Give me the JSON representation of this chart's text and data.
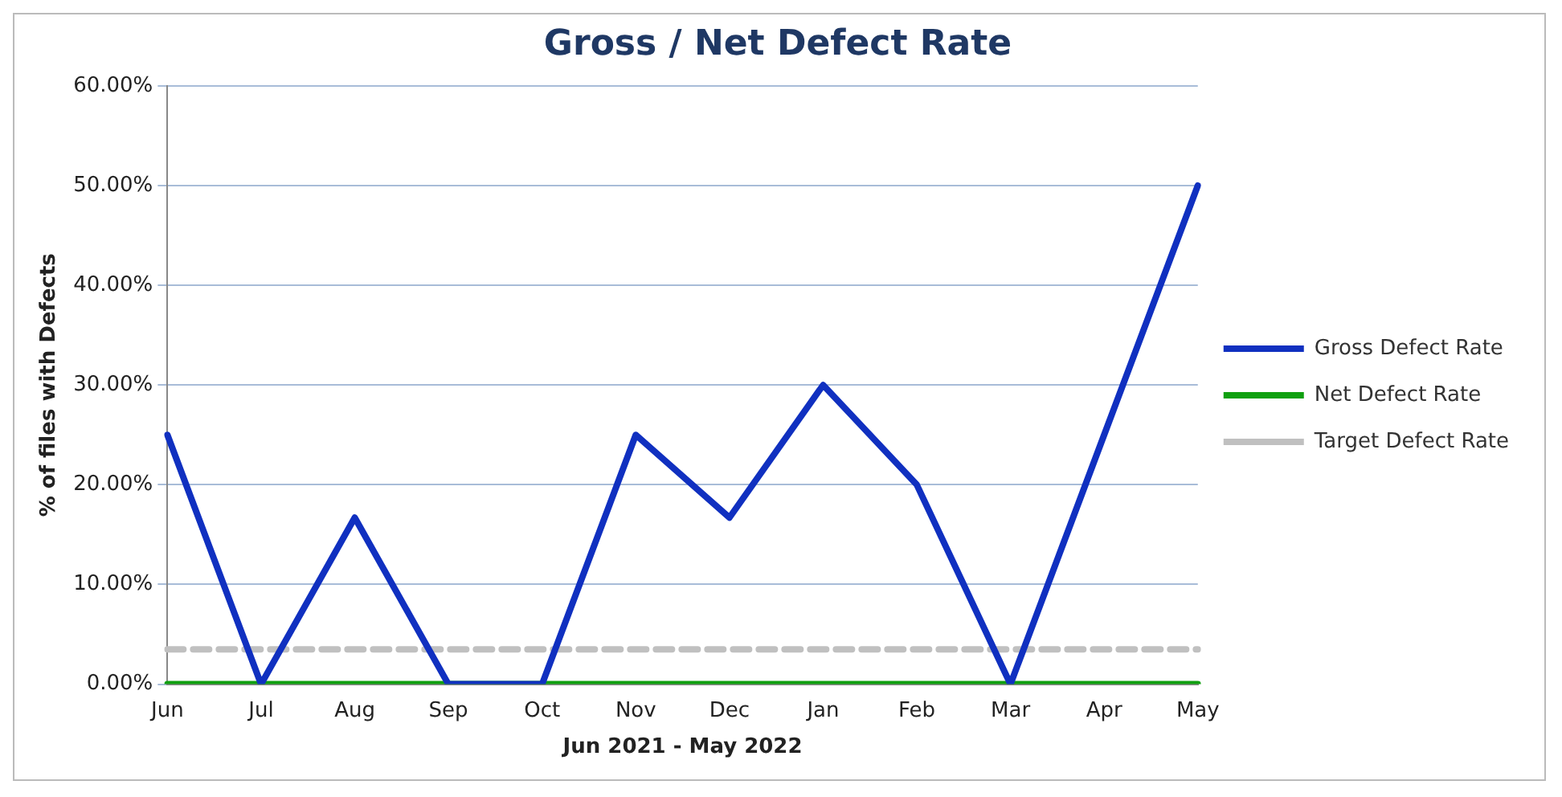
{
  "chart_data": {
    "type": "line",
    "title": "Gross / Net Defect Rate",
    "xlabel": "Jun 2021 - May 2022",
    "ylabel": "% of files with Defects",
    "categories": [
      "Jun",
      "Jul",
      "Aug",
      "Sep",
      "Oct",
      "Nov",
      "Dec",
      "Jan",
      "Feb",
      "Mar",
      "Apr",
      "May"
    ],
    "series": [
      {
        "name": "Gross Defect Rate",
        "color": "#1030c0",
        "values": [
          25,
          0,
          16.7,
          0,
          0,
          25,
          16.7,
          30,
          20,
          0,
          25,
          50
        ]
      },
      {
        "name": "Net Defect Rate",
        "color": "#10a010",
        "values": [
          0,
          0,
          0,
          0,
          0,
          0,
          0,
          0,
          0,
          0,
          0,
          0
        ]
      },
      {
        "name": "Target Defect Rate",
        "color": "#c0c0c0",
        "line_style": "dashed",
        "values": [
          3.5,
          3.5,
          3.5,
          3.5,
          3.5,
          3.5,
          3.5,
          3.5,
          3.5,
          3.5,
          3.5,
          3.5
        ]
      }
    ],
    "ylim": [
      0,
      60
    ],
    "yticks": [
      {
        "value": 0,
        "label": "0.00%"
      },
      {
        "value": 10,
        "label": "10.00%"
      },
      {
        "value": 20,
        "label": "20.00%"
      },
      {
        "value": 30,
        "label": "30.00%"
      },
      {
        "value": 40,
        "label": "40.00%"
      },
      {
        "value": 50,
        "label": "50.00%"
      },
      {
        "value": 60,
        "label": "60.00%"
      }
    ],
    "grid": "y",
    "legend": "right",
    "marker": "none",
    "line_style": "solid"
  }
}
